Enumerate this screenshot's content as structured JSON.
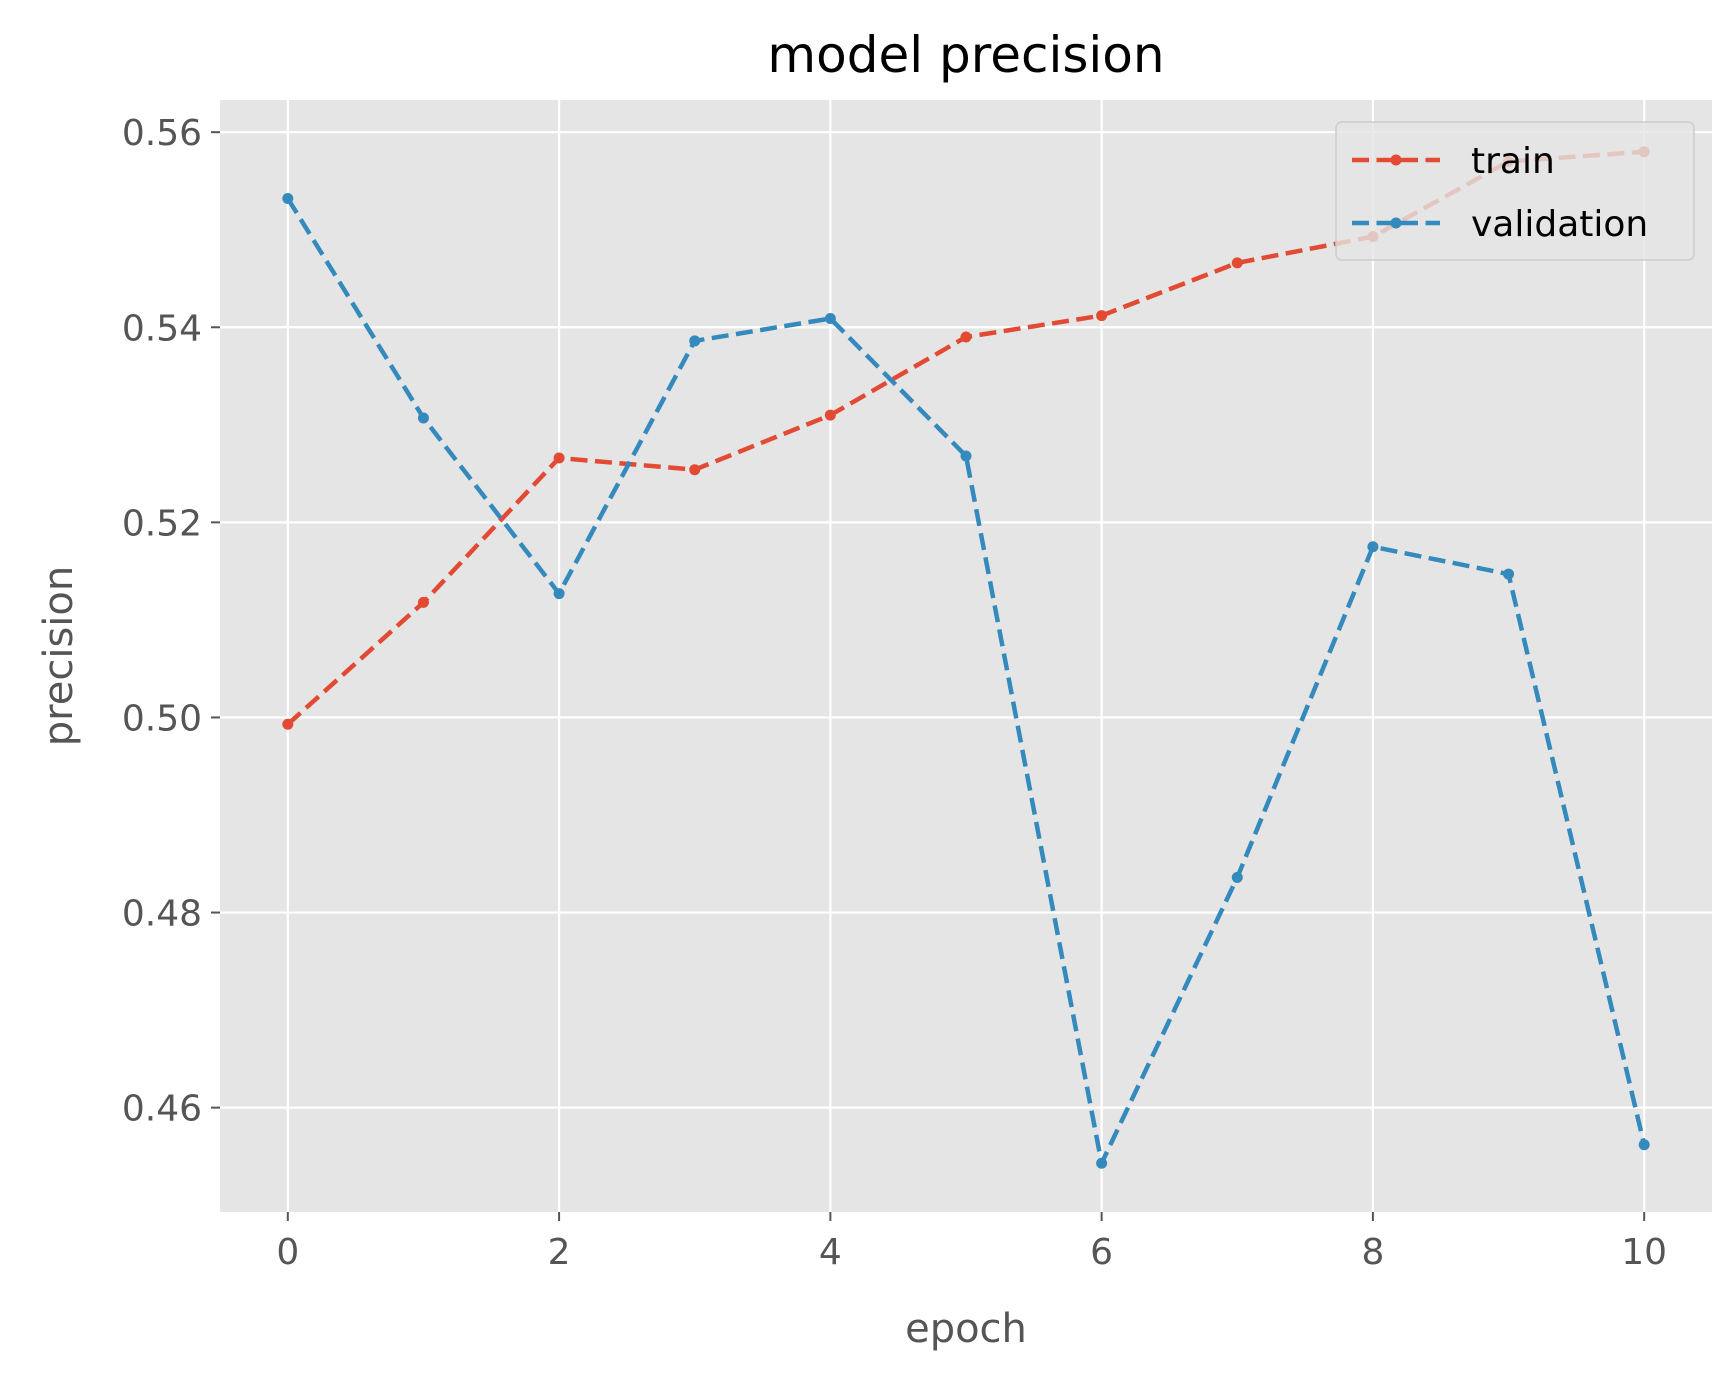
{
  "chart_data": {
    "type": "line",
    "title": "model precision",
    "xlabel": "epoch",
    "ylabel": "precision",
    "xlim": [
      -0.5,
      10.5
    ],
    "ylim": [
      0.4493,
      0.5633
    ],
    "x_ticks": [
      0,
      2,
      4,
      6,
      8,
      10
    ],
    "x_tick_labels": [
      "0",
      "2",
      "4",
      "6",
      "8",
      "10"
    ],
    "y_ticks": [
      0.46,
      0.48,
      0.5,
      0.52,
      0.54,
      0.56
    ],
    "y_tick_labels": [
      "0.46",
      "0.48",
      "0.50",
      "0.52",
      "0.54",
      "0.56"
    ],
    "grid": true,
    "legend_position": "top-right",
    "x": [
      0,
      1,
      2,
      3,
      4,
      5,
      6,
      7,
      8,
      9,
      10
    ],
    "series": [
      {
        "name": "train",
        "color": "#e24a33",
        "line_style": "dashed",
        "marker": "dot",
        "values": [
          0.4993,
          0.5118,
          0.5266,
          0.5254,
          0.531,
          0.539,
          0.5412,
          0.5466,
          0.5493,
          0.557,
          0.558
        ]
      },
      {
        "name": "validation",
        "color": "#348abd",
        "line_style": "dashed",
        "marker": "dot",
        "values": [
          0.5532,
          0.5307,
          0.5127,
          0.5386,
          0.5409,
          0.5268,
          0.4543,
          0.4836,
          0.5175,
          0.5147,
          0.4562
        ]
      }
    ]
  }
}
